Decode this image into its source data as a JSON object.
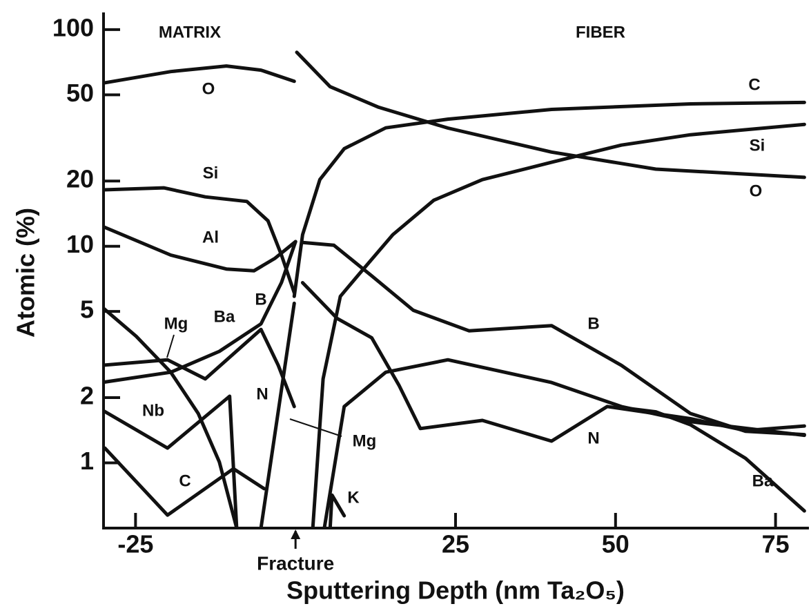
{
  "chart_data": {
    "type": "line",
    "xlabel": "Sputtering Depth (nm Ta₂O₅)",
    "ylabel": "Atomic (%)",
    "log_y": true,
    "color": "#111111",
    "xlim": [
      -30,
      80
    ],
    "ylim": [
      0.5,
      120
    ],
    "xticks": [
      -25,
      25,
      50,
      75
    ],
    "yticks": [
      1,
      2,
      5,
      10,
      20,
      50,
      100
    ],
    "annotations": [
      {
        "text": "MATRIX"
      },
      {
        "text": "FIBER"
      },
      {
        "text": "Fracture",
        "x": 0
      }
    ],
    "series": [
      {
        "name": "O",
        "x": [
          -30.3,
          -19.5,
          -10.8,
          -5.4,
          -0.2
        ],
        "values": [
          56.5,
          64,
          67.9,
          65,
          57.7
        ]
      },
      {
        "name": "O",
        "x": [
          0.2,
          5.4,
          13,
          23.8,
          40,
          56.3,
          79.5
        ],
        "values": [
          78.5,
          54.5,
          43.8,
          35.1,
          27.2,
          22.7,
          20.8
        ]
      },
      {
        "name": "C",
        "x": [
          -0.2,
          1.1,
          3.8,
          7.6,
          14.1,
          23.8,
          40,
          61.7,
          79.5
        ],
        "values": [
          5.87,
          11.3,
          20.3,
          28.2,
          35.2,
          38.6,
          42.8,
          45.4,
          46.1
        ]
      },
      {
        "name": "C",
        "x": [
          -29.8,
          -20,
          -9.7,
          -4.9
        ],
        "values": [
          1.17,
          0.574,
          0.94,
          0.76
        ]
      },
      {
        "name": "Si",
        "x": [
          -30.3,
          -20.6,
          -14.1,
          -7.6,
          -4.3,
          -2.2,
          -0.2
        ],
        "values": [
          18.2,
          18.6,
          16.9,
          16.1,
          13.1,
          9.1,
          6.1
        ]
      },
      {
        "name": "Si",
        "x": [
          2.7,
          4.3,
          7,
          9.7,
          15.2,
          21.6,
          29.2,
          40,
          50.9,
          61.7,
          79.5
        ],
        "values": [
          0.5,
          2.44,
          5.87,
          7.3,
          11.3,
          16.3,
          20.3,
          24.4,
          29.3,
          32.7,
          36.5
        ]
      },
      {
        "name": "Al",
        "x": [
          -30.3,
          -19.5,
          -10.8,
          -6.5,
          -3.2,
          0
        ],
        "values": [
          12.4,
          9.1,
          7.85,
          7.7,
          8.8,
          10.5
        ]
      },
      {
        "name": "B",
        "x": [
          -30.3,
          -19.5,
          -11.9,
          -5.4,
          -2.2,
          0
        ],
        "values": [
          2.35,
          2.62,
          3.27,
          4.38,
          6.8,
          10.5
        ]
      },
      {
        "name": "B",
        "x": [
          1.1,
          6,
          11.9,
          18.4,
          27.1,
          40,
          50.9,
          61.7,
          70.3,
          79.5
        ],
        "values": [
          10.4,
          10.1,
          7.3,
          5.06,
          4.07,
          4.3,
          2.82,
          1.69,
          1.4,
          1.35
        ]
      },
      {
        "name": "Ba",
        "x": [
          -30.3,
          -20,
          -14.1,
          -5.4,
          -2.7,
          -0.2
        ],
        "values": [
          2.82,
          2.99,
          2.44,
          4.13,
          2.82,
          1.82
        ]
      },
      {
        "name": "Ba",
        "x": [
          50.9,
          56.3,
          61.7,
          70.3,
          79.5
        ],
        "values": [
          1.8,
          1.72,
          1.5,
          1.05,
          0.6
        ]
      },
      {
        "name": "Mg",
        "x": [
          -30.3,
          -24.9,
          -19.5,
          -15.2,
          -11.9,
          -9.2
        ],
        "values": [
          5.26,
          3.84,
          2.62,
          1.69,
          1.01,
          0.5
        ]
      },
      {
        "name": "Mg",
        "x": [
          4.5,
          7.6,
          14.1,
          23.8,
          40,
          50.9,
          61.7,
          79.5
        ],
        "values": [
          0.5,
          1.82,
          2.62,
          2.99,
          2.35,
          1.82,
          1.55,
          1.34
        ]
      },
      {
        "name": "N",
        "x": [
          -5.4,
          -0.2
        ],
        "values": [
          0.5,
          5.45
        ]
      },
      {
        "name": "N",
        "x": [
          1.1,
          6.5,
          11.9,
          16.2,
          19.5,
          29.2,
          40,
          48.7,
          61.7,
          70.3,
          79.5
        ],
        "values": [
          6.79,
          4.64,
          3.78,
          2.27,
          1.44,
          1.57,
          1.26,
          1.82,
          1.6,
          1.41,
          1.48
        ]
      },
      {
        "name": "Nb",
        "x": [
          -30.3,
          -20,
          -10.3,
          -9.2
        ],
        "values": [
          1.76,
          1.17,
          2.03,
          0.5
        ]
      },
      {
        "name": "K",
        "x": [
          5.4,
          5.7,
          7.6
        ],
        "values": [
          0.5,
          0.71,
          0.57
        ]
      }
    ]
  }
}
